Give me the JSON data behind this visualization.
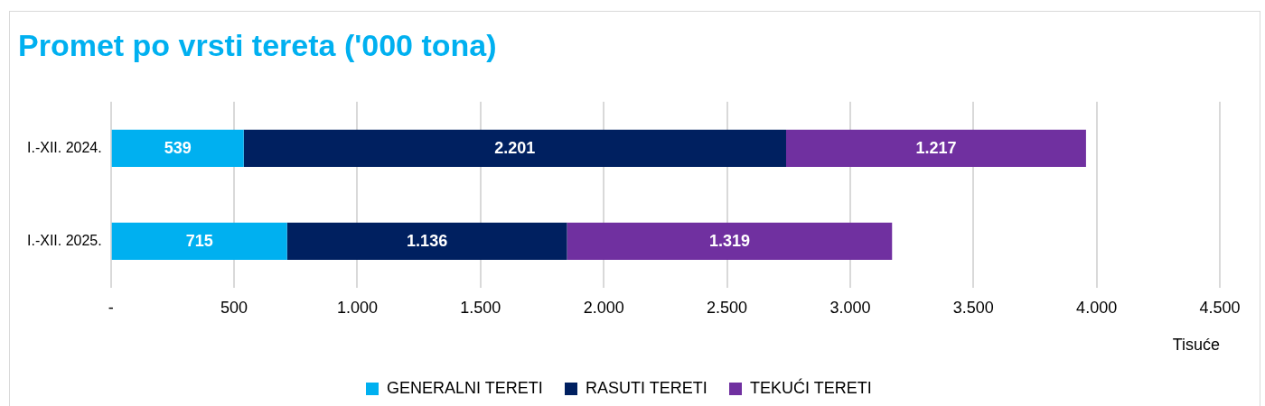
{
  "chart_data": {
    "type": "bar",
    "title": "Promet po vrsti tereta ('000 tona)",
    "xlabel": "Tisuće",
    "orientation": "horizontal",
    "stacked": true,
    "categories": [
      "I.-XII. 2024.",
      "I.-XII. 2025."
    ],
    "series": [
      {
        "name": "GENERALNI TERETI",
        "color": "#00b0f0",
        "values": [
          539,
          715
        ],
        "value_labels": [
          "539",
          "715"
        ]
      },
      {
        "name": "RASUTI TERETI",
        "color": "#002060",
        "values": [
          2201,
          1136
        ],
        "value_labels": [
          "2.201",
          "1.136"
        ]
      },
      {
        "name": "TEKUĆI TERETI",
        "color": "#7030a0",
        "values": [
          1217,
          1319
        ],
        "value_labels": [
          "1.217",
          "1.319"
        ]
      }
    ],
    "xlim": [
      0,
      4500
    ],
    "xticks": [
      {
        "value": 0,
        "label": "-"
      },
      {
        "value": 500,
        "label": "500"
      },
      {
        "value": 1000,
        "label": "1.000"
      },
      {
        "value": 1500,
        "label": "1.500"
      },
      {
        "value": 2000,
        "label": "2.000"
      },
      {
        "value": 2500,
        "label": "2.500"
      },
      {
        "value": 3000,
        "label": "3.000"
      },
      {
        "value": 3500,
        "label": "3.500"
      },
      {
        "value": 4000,
        "label": "4.000"
      },
      {
        "value": 4500,
        "label": "4.500"
      }
    ],
    "grid": "x",
    "legend": "bottom"
  }
}
